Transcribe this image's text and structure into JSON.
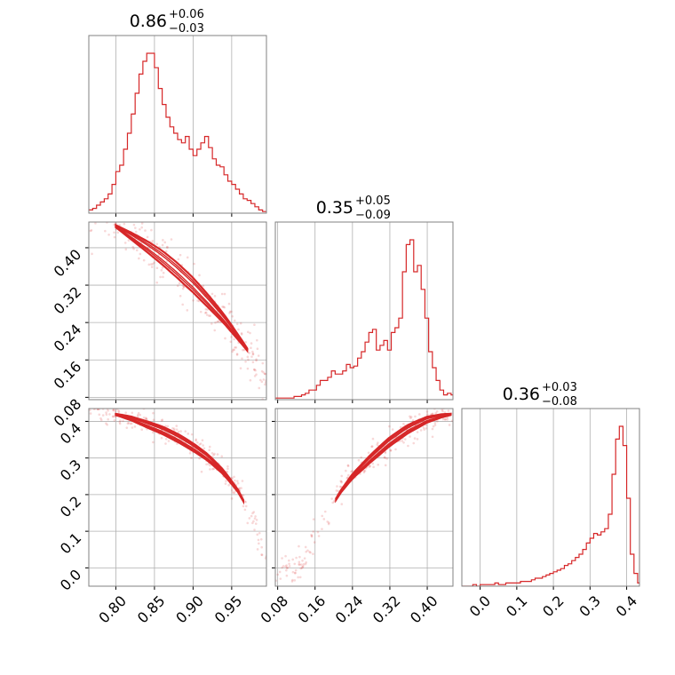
{
  "colors": {
    "accent": "#d62728",
    "grid": "#b0b0b0",
    "frame": "#808080"
  },
  "chart_data": {
    "type": "corner",
    "grid": true,
    "parameters": [
      {
        "id": "p0",
        "median": "0.86",
        "plus": "+0.06",
        "minus": "−0.03",
        "range": [
          0.765,
          0.995
        ],
        "ticks": [
          0.8,
          0.85,
          0.9,
          0.95
        ],
        "tick_labels": [
          "0.80",
          "0.85",
          "0.90",
          "0.95"
        ]
      },
      {
        "id": "p1",
        "median": "0.35",
        "plus": "+0.05",
        "minus": "−0.09",
        "range": [
          0.075,
          0.455
        ],
        "ticks": [
          0.08,
          0.16,
          0.24,
          0.32,
          0.4
        ],
        "tick_labels": [
          "0.08",
          "0.16",
          "0.24",
          "0.32",
          "0.40"
        ]
      },
      {
        "id": "p2",
        "median": "0.36",
        "plus": "+0.03",
        "minus": "−0.08",
        "range": [
          -0.05,
          0.435
        ],
        "ticks": [
          0.0,
          0.1,
          0.2,
          0.3,
          0.4
        ],
        "tick_labels": [
          "0.0",
          "0.1",
          "0.2",
          "0.3",
          "0.4"
        ]
      }
    ],
    "histograms": [
      {
        "param": 0,
        "x": [
          0.765,
          0.77,
          0.775,
          0.78,
          0.785,
          0.79,
          0.795,
          0.8,
          0.805,
          0.81,
          0.815,
          0.82,
          0.825,
          0.83,
          0.835,
          0.84,
          0.845,
          0.85,
          0.855,
          0.86,
          0.865,
          0.87,
          0.875,
          0.88,
          0.885,
          0.89,
          0.895,
          0.9,
          0.905,
          0.91,
          0.915,
          0.92,
          0.925,
          0.93,
          0.935,
          0.94,
          0.945,
          0.95,
          0.955,
          0.96,
          0.965,
          0.97,
          0.975,
          0.98,
          0.985,
          0.99
        ],
        "counts": [
          2,
          3,
          5,
          7,
          9,
          12,
          18,
          26,
          30,
          40,
          50,
          62,
          75,
          87,
          95,
          100,
          100,
          91,
          78,
          68,
          60,
          54,
          50,
          46,
          44,
          48,
          40,
          36,
          40,
          44,
          48,
          41,
          34,
          30,
          29,
          24,
          20,
          18,
          15,
          12,
          9,
          8,
          6,
          4,
          2,
          1
        ]
      },
      {
        "param": 1,
        "x": [
          0.075,
          0.083,
          0.091,
          0.099,
          0.107,
          0.115,
          0.123,
          0.131,
          0.139,
          0.147,
          0.155,
          0.163,
          0.171,
          0.179,
          0.187,
          0.195,
          0.203,
          0.211,
          0.219,
          0.227,
          0.235,
          0.243,
          0.251,
          0.259,
          0.267,
          0.275,
          0.283,
          0.291,
          0.299,
          0.307,
          0.315,
          0.323,
          0.331,
          0.339,
          0.347,
          0.355,
          0.363,
          0.371,
          0.379,
          0.387,
          0.395,
          0.403,
          0.411,
          0.419,
          0.427,
          0.435,
          0.443,
          0.451
        ],
        "counts": [
          1,
          1,
          1,
          1,
          1,
          2,
          2,
          3,
          4,
          6,
          6,
          9,
          12,
          12,
          14,
          18,
          16,
          16,
          18,
          22,
          20,
          21,
          26,
          30,
          36,
          42,
          44,
          31,
          34,
          37,
          31,
          42,
          45,
          51,
          80,
          97,
          100,
          80,
          84,
          69,
          51,
          30,
          20,
          12,
          6,
          3,
          4,
          3
        ]
      },
      {
        "param": 2,
        "x": [
          -0.05,
          -0.04,
          -0.03,
          -0.02,
          -0.01,
          0.0,
          0.01,
          0.02,
          0.03,
          0.04,
          0.05,
          0.06,
          0.07,
          0.08,
          0.09,
          0.1,
          0.11,
          0.12,
          0.13,
          0.14,
          0.15,
          0.16,
          0.17,
          0.18,
          0.19,
          0.2,
          0.21,
          0.22,
          0.23,
          0.24,
          0.25,
          0.26,
          0.27,
          0.28,
          0.29,
          0.3,
          0.31,
          0.32,
          0.33,
          0.34,
          0.35,
          0.36,
          0.37,
          0.38,
          0.39,
          0.4,
          0.41,
          0.42,
          0.43
        ],
        "counts": [
          0,
          0,
          0,
          1,
          0,
          1,
          1,
          1,
          1,
          2,
          1,
          1,
          2,
          2,
          2,
          2,
          3,
          3,
          3,
          4,
          5,
          5,
          6,
          7,
          8,
          9,
          10,
          11,
          13,
          14,
          16,
          18,
          20,
          23,
          27,
          30,
          33,
          32,
          34,
          36,
          45,
          70,
          92,
          100,
          88,
          55,
          20,
          8,
          2
        ]
      }
    ],
    "pairs": [
      {
        "x_param": 0,
        "y_param": 1,
        "ridge": [
          [
            0.765,
            0.48
          ],
          [
            0.8,
            0.446
          ],
          [
            0.82,
            0.425
          ],
          [
            0.84,
            0.403
          ],
          [
            0.86,
            0.379
          ],
          [
            0.88,
            0.351
          ],
          [
            0.9,
            0.32
          ],
          [
            0.92,
            0.285
          ],
          [
            0.94,
            0.248
          ],
          [
            0.96,
            0.205
          ],
          [
            0.98,
            0.16
          ],
          [
            0.995,
            0.12
          ]
        ],
        "contour_range": [
          0.8,
          0.97
        ],
        "half_width": 0.016
      },
      {
        "x_param": 0,
        "y_param": 2,
        "ridge": [
          [
            0.765,
            0.43
          ],
          [
            0.8,
            0.419
          ],
          [
            0.82,
            0.408
          ],
          [
            0.84,
            0.392
          ],
          [
            0.86,
            0.376
          ],
          [
            0.88,
            0.355
          ],
          [
            0.9,
            0.33
          ],
          [
            0.92,
            0.3
          ],
          [
            0.94,
            0.26
          ],
          [
            0.96,
            0.205
          ],
          [
            0.98,
            0.12
          ],
          [
            0.995,
            0.02
          ]
        ],
        "contour_range": [
          0.8,
          0.965
        ],
        "half_width": 0.011
      },
      {
        "x_param": 1,
        "y_param": 2,
        "ridge": [
          [
            0.13,
            0.0
          ],
          [
            0.16,
            0.08
          ],
          [
            0.19,
            0.15
          ],
          [
            0.21,
            0.2
          ],
          [
            0.24,
            0.25
          ],
          [
            0.28,
            0.3
          ],
          [
            0.32,
            0.345
          ],
          [
            0.36,
            0.38
          ],
          [
            0.4,
            0.405
          ],
          [
            0.43,
            0.415
          ],
          [
            0.455,
            0.42
          ]
        ],
        "contour_range": [
          0.205,
          0.45
        ],
        "half_width": 0.012
      }
    ]
  }
}
